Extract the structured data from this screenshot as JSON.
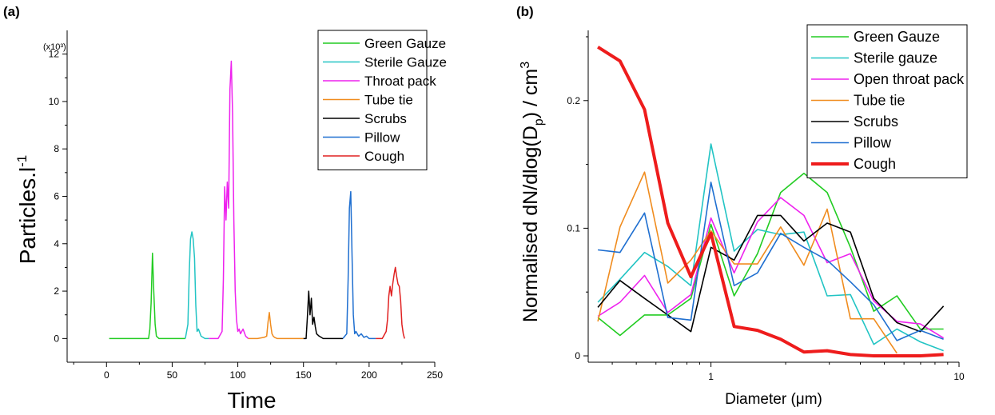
{
  "chart_data": [
    {
      "panel_label": "(a)",
      "type": "line",
      "xlabel": "Time",
      "ylabel": "Particles.l",
      "ylabel_superscript": "-1",
      "y_multiplier": "(x10³)",
      "xlim": [
        -30,
        250
      ],
      "ylim": [
        -1,
        13
      ],
      "xticks": [
        0,
        50,
        100,
        150,
        200,
        250
      ],
      "yticks": [
        0,
        2,
        4,
        6,
        8,
        10,
        12
      ],
      "grid": false,
      "legend_position": "top-right",
      "series": [
        {
          "name": "Green Gauze",
          "color": "#22cc22",
          "x": [
            2,
            32,
            33,
            34,
            35,
            36,
            37,
            38,
            40,
            45,
            50,
            55,
            60
          ],
          "y": [
            0,
            0,
            0.4,
            1.5,
            3.6,
            2.0,
            0.6,
            0.1,
            0,
            0,
            0,
            0,
            0
          ]
        },
        {
          "name": "Sterile Gauze",
          "color": "#22c4c4",
          "x": [
            60,
            62,
            63,
            64,
            65,
            66,
            67,
            68,
            69,
            70,
            72,
            75,
            78
          ],
          "y": [
            0,
            0.6,
            2.8,
            4.2,
            4.5,
            4.2,
            3.4,
            1.4,
            0.3,
            0.4,
            0.1,
            0,
            0
          ]
        },
        {
          "name": "Throat pack",
          "color": "#ee22ee",
          "x": [
            78,
            85,
            88,
            89,
            90,
            91,
            92,
            93,
            94,
            95,
            96,
            97,
            98,
            99,
            100,
            101,
            102,
            104,
            106,
            108
          ],
          "y": [
            0,
            0,
            0.3,
            2.5,
            6.4,
            5.0,
            6.6,
            5.5,
            10.5,
            11.7,
            9.5,
            5.0,
            2.0,
            0.8,
            0.3,
            0.4,
            0.2,
            0.4,
            0.1,
            0
          ]
        },
        {
          "name": "Tube tie",
          "color": "#f08c1e",
          "x": [
            108,
            115,
            120,
            122,
            123,
            124,
            125,
            126,
            127,
            128,
            130,
            135,
            140,
            145,
            150
          ],
          "y": [
            0,
            0,
            0.05,
            0.1,
            0.7,
            1.1,
            0.6,
            0.2,
            0.1,
            0.05,
            0,
            0,
            0,
            0,
            0
          ]
        },
        {
          "name": "Scrubs",
          "color": "#000000",
          "x": [
            150,
            152,
            153,
            154,
            155,
            156,
            157,
            158,
            159,
            160,
            162,
            165,
            170,
            175,
            180
          ],
          "y": [
            0,
            0,
            0.9,
            2.0,
            1.0,
            1.7,
            0.6,
            0.9,
            0.5,
            0.2,
            0.1,
            0,
            0,
            0,
            0
          ]
        },
        {
          "name": "Pillow",
          "color": "#1f6fd0",
          "x": [
            180,
            183,
            184,
            185,
            186,
            187,
            188,
            189,
            190,
            192,
            194,
            196,
            198,
            200,
            205
          ],
          "y": [
            0,
            0.2,
            2.5,
            5.5,
            6.2,
            3.5,
            1.0,
            0.2,
            0.3,
            0.1,
            0.2,
            0.05,
            0.1,
            0,
            0
          ]
        },
        {
          "name": "Cough",
          "color": "#e02020",
          "x": [
            205,
            210,
            213,
            214,
            215,
            216,
            217,
            218,
            219,
            220,
            221,
            222,
            223,
            224,
            225,
            226,
            227
          ],
          "y": [
            0,
            0,
            0.3,
            0.8,
            1.8,
            2.2,
            1.8,
            2.3,
            2.7,
            3.0,
            2.6,
            2.3,
            2.2,
            1.6,
            0.6,
            0.2,
            0
          ]
        }
      ]
    },
    {
      "panel_label": "(b)",
      "type": "line",
      "xscale": "log",
      "xlabel": "Diameter (μm)",
      "ylabel": "Normalised dN/dlog(D",
      "ylabel_sub": "p",
      "ylabel_tail": ") / cm",
      "ylabel_sup": "3",
      "xlim": [
        0.32,
        10
      ],
      "ylim": [
        -0.005,
        0.255
      ],
      "xticks": [
        1,
        10
      ],
      "xtick_labels": [
        "1",
        "10"
      ],
      "yticks": [
        0,
        0.1,
        0.2
      ],
      "ytick_labels": [
        "0",
        "0.1",
        "0.2"
      ],
      "grid": false,
      "legend_position": "top-right",
      "x": [
        0.35,
        0.43,
        0.54,
        0.67,
        0.83,
        1.0,
        1.24,
        1.54,
        1.91,
        2.37,
        2.94,
        3.65,
        4.53,
        5.62,
        6.98,
        8.66
      ],
      "series": [
        {
          "name": "Green Gauze",
          "color": "#22cc22",
          "width": 1.6,
          "values": [
            0.03,
            0.016,
            0.032,
            0.032,
            0.045,
            0.103,
            0.047,
            0.08,
            0.128,
            0.143,
            0.128,
            0.085,
            0.035,
            0.047,
            0.021,
            0.021
          ]
        },
        {
          "name": "Sterile gauze",
          "color": "#22c4c4",
          "width": 1.6,
          "values": [
            0.042,
            0.06,
            0.081,
            0.07,
            0.055,
            0.166,
            0.082,
            0.099,
            0.095,
            0.097,
            0.047,
            0.048,
            0.009,
            0.021,
            0.011,
            0.004
          ]
        },
        {
          "name": "Open throat pack",
          "color": "#ee22ee",
          "width": 1.6,
          "values": [
            0.031,
            0.042,
            0.063,
            0.034,
            0.048,
            0.108,
            0.065,
            0.105,
            0.124,
            0.11,
            0.073,
            0.08,
            0.043,
            0.027,
            0.025,
            0.014
          ]
        },
        {
          "name": "Tube tie",
          "color": "#f08c1e",
          "width": 1.6,
          "values": [
            0.027,
            0.101,
            0.144,
            0.057,
            0.075,
            0.098,
            0.072,
            0.072,
            0.101,
            0.071,
            0.115,
            0.029,
            0.029,
            0.002,
            null,
            null
          ]
        },
        {
          "name": "Scrubs",
          "color": "#000000",
          "width": 1.6,
          "values": [
            0.038,
            0.059,
            0.045,
            0.032,
            0.019,
            0.085,
            0.075,
            0.11,
            0.11,
            0.09,
            0.104,
            0.097,
            0.045,
            0.026,
            0.019,
            0.039
          ]
        },
        {
          "name": "Pillow",
          "color": "#1f6fd0",
          "width": 1.6,
          "values": [
            0.083,
            0.081,
            0.112,
            0.03,
            0.028,
            0.136,
            0.055,
            0.065,
            0.096,
            0.085,
            0.075,
            0.058,
            0.04,
            0.012,
            0.02,
            0.013
          ]
        },
        {
          "name": "Cough",
          "color": "#ee1c1c",
          "width": 4,
          "values": [
            0.242,
            0.231,
            0.193,
            0.104,
            0.062,
            0.096,
            0.023,
            0.02,
            0.013,
            0.003,
            0.004,
            0.001,
            0.0,
            0.0,
            0.0,
            0.001
          ]
        }
      ]
    }
  ]
}
